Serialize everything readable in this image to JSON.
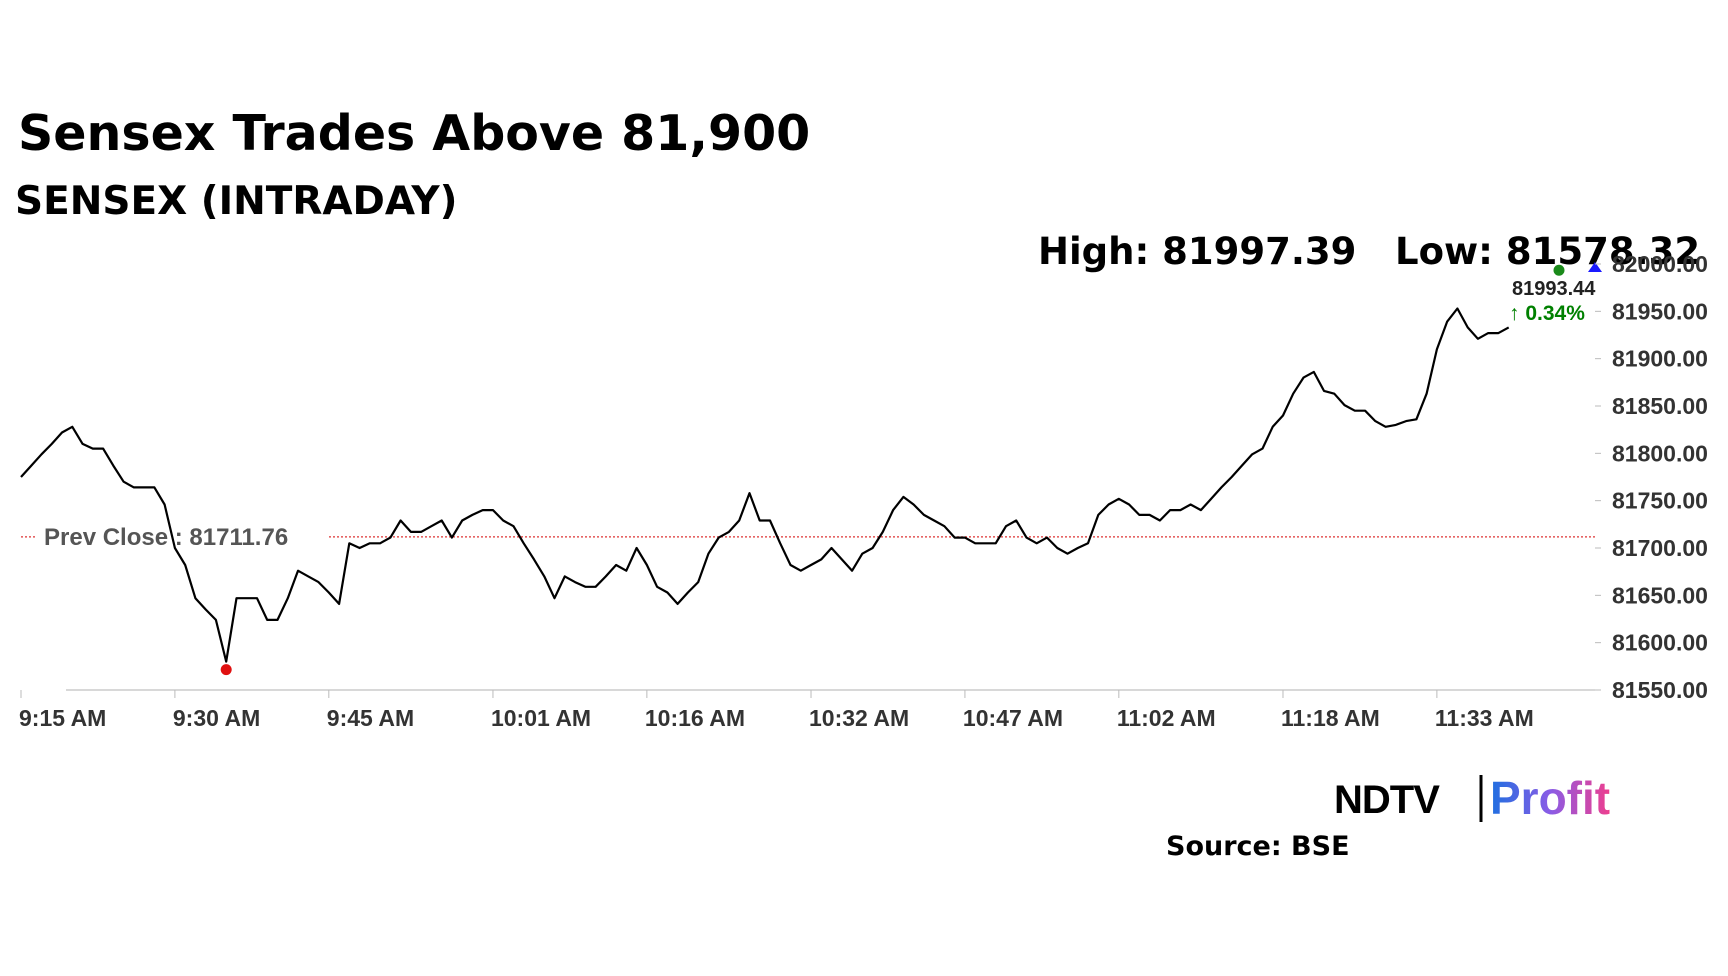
{
  "chart_data": {
    "type": "line",
    "title": "Sensex Trades Above 81,900",
    "subtitle": "SENSEX (INTRADAY)",
    "high_label": "High: 81997.39",
    "low_label": "Low: 81578.32",
    "current": {
      "value": 81993.44,
      "change": "↑ 0.34%"
    },
    "prev_close": {
      "label": "Prev Close : 81711.76",
      "value": 81711.76
    },
    "x": [
      "9:15 AM",
      "9:16 AM",
      "9:17 AM",
      "9:18 AM",
      "9:19 AM",
      "9:20 AM",
      "9:21 AM",
      "9:22 AM",
      "9:23 AM",
      "9:24 AM",
      "9:25 AM",
      "9:26 AM",
      "9:27 AM",
      "9:28 AM",
      "9:29 AM",
      "9:30 AM",
      "9:31 AM",
      "9:32 AM",
      "9:33 AM",
      "9:34 AM",
      "9:35 AM",
      "9:36 AM",
      "9:37 AM",
      "9:38 AM",
      "9:39 AM",
      "9:40 AM",
      "9:41 AM",
      "9:42 AM",
      "9:43 AM",
      "9:44 AM",
      "9:45 AM",
      "9:46 AM",
      "9:47 AM",
      "9:48 AM",
      "9:49 AM",
      "9:50 AM",
      "9:51 AM",
      "9:52 AM",
      "9:53 AM",
      "9:54 AM",
      "9:55 AM",
      "9:56 AM",
      "9:57 AM",
      "9:58 AM",
      "9:59 AM",
      "10:00 AM",
      "10:01 AM",
      "10:02 AM",
      "10:03 AM",
      "10:04 AM",
      "10:05 AM",
      "10:06 AM",
      "10:07 AM",
      "10:08 AM",
      "10:09 AM",
      "10:10 AM",
      "10:11 AM",
      "10:12 AM",
      "10:13 AM",
      "10:14 AM",
      "10:15 AM",
      "10:16 AM",
      "10:17 AM",
      "10:18 AM",
      "10:19 AM",
      "10:20 AM",
      "10:21 AM",
      "10:22 AM",
      "10:23 AM",
      "10:24 AM",
      "10:25 AM",
      "10:26 AM",
      "10:27 AM",
      "10:28 AM",
      "10:29 AM",
      "10:30 AM",
      "10:31 AM",
      "10:32 AM",
      "10:33 AM",
      "10:34 AM",
      "10:35 AM",
      "10:36 AM",
      "10:37 AM",
      "10:38 AM",
      "10:39 AM",
      "10:40 AM",
      "10:41 AM",
      "10:42 AM",
      "10:43 AM",
      "10:44 AM",
      "10:45 AM",
      "10:46 AM",
      "10:47 AM",
      "10:48 AM",
      "10:49 AM",
      "10:50 AM",
      "10:51 AM",
      "10:52 AM",
      "10:53 AM",
      "10:54 AM",
      "10:55 AM",
      "10:56 AM",
      "10:57 AM",
      "10:58 AM",
      "10:59 AM",
      "11:00 AM",
      "11:01 AM",
      "11:02 AM",
      "11:03 AM",
      "11:04 AM",
      "11:05 AM",
      "11:06 AM",
      "11:07 AM",
      "11:08 AM",
      "11:09 AM",
      "11:10 AM",
      "11:11 AM",
      "11:12 AM",
      "11:13 AM",
      "11:14 AM",
      "11:15 AM",
      "11:16 AM",
      "11:17 AM",
      "11:18 AM",
      "11:19 AM",
      "11:20 AM",
      "11:21 AM",
      "11:22 AM",
      "11:23 AM",
      "11:24 AM",
      "11:25 AM",
      "11:26 AM",
      "11:27 AM",
      "11:28 AM",
      "11:29 AM",
      "11:30 AM",
      "11:31 AM",
      "11:32 AM",
      "11:33 AM",
      "11:34 AM",
      "11:35 AM",
      "11:36 AM",
      "11:37 AM",
      "11:38 AM",
      "11:39 AM",
      "11:40 AM"
    ],
    "series": [
      {
        "color": "#000000",
        "values": [
          81775,
          81787,
          81799,
          81810,
          81822,
          81828,
          81810,
          81805,
          81805,
          81787,
          81770,
          81764,
          81764,
          81764,
          81746,
          81700,
          81682,
          81647,
          81635,
          81624,
          81580,
          81647,
          81647,
          81647,
          81624,
          81624,
          81647,
          81676,
          81670,
          81664,
          81653,
          81641,
          81705,
          81700,
          81705,
          81705,
          81711,
          81729,
          81717,
          81717,
          81723,
          81729,
          81711,
          81729,
          81735,
          81740,
          81740,
          81729,
          81723,
          81705,
          81688,
          81670,
          81647,
          81670,
          81664,
          81659,
          81659,
          81670,
          81682,
          81676,
          81700,
          81682,
          81659,
          81653,
          81641,
          81653,
          81664,
          81694,
          81711,
          81717,
          81729,
          81758,
          81729,
          81729,
          81705,
          81682,
          81676,
          81682,
          81688,
          81700,
          81688,
          81676,
          81694,
          81700,
          81717,
          81740,
          81754,
          81746,
          81735,
          81729,
          81723,
          81711,
          81711,
          81705,
          81705,
          81705,
          81723,
          81729,
          81711,
          81705,
          81711,
          81700,
          81694,
          81700,
          81705,
          81735,
          81746,
          81752,
          81746,
          81735,
          81735,
          81729,
          81740,
          81740,
          81746,
          81740,
          81752,
          81764,
          81775,
          81787,
          81799,
          81805,
          81828,
          81840,
          81863,
          81880,
          81886,
          81866,
          81863,
          81851,
          81845,
          81845,
          81834,
          81828,
          81830,
          81834,
          81836,
          81863,
          81910,
          81939,
          81953,
          81933,
          81921,
          81927,
          81927,
          81933
        ]
      }
    ],
    "xticks": [
      "9:15 AM",
      "9:30 AM",
      "9:45 AM",
      "10:01 AM",
      "10:16 AM",
      "10:32 AM",
      "10:47 AM",
      "11:02 AM",
      "11:18 AM",
      "11:33 AM"
    ],
    "ylim": [
      81550,
      82000
    ],
    "yticks": [
      {
        "value": 81550,
        "label": "81550.00"
      },
      {
        "value": 81600,
        "label": "81600.00"
      },
      {
        "value": 81650,
        "label": "81650.00"
      },
      {
        "value": 81700,
        "label": "81700.00"
      },
      {
        "value": 81750,
        "label": "81750.00"
      },
      {
        "value": 81800,
        "label": "81800.00"
      },
      {
        "value": 81850,
        "label": "81850.00"
      },
      {
        "value": 81900,
        "label": "81900.00"
      },
      {
        "value": 81950,
        "label": "81950.00"
      },
      {
        "value": 82000,
        "label": "82000.00"
      }
    ],
    "grid": false
  },
  "branding": {
    "ndtv": "NDTV",
    "profit": "Profit"
  },
  "source": "Source: BSE"
}
